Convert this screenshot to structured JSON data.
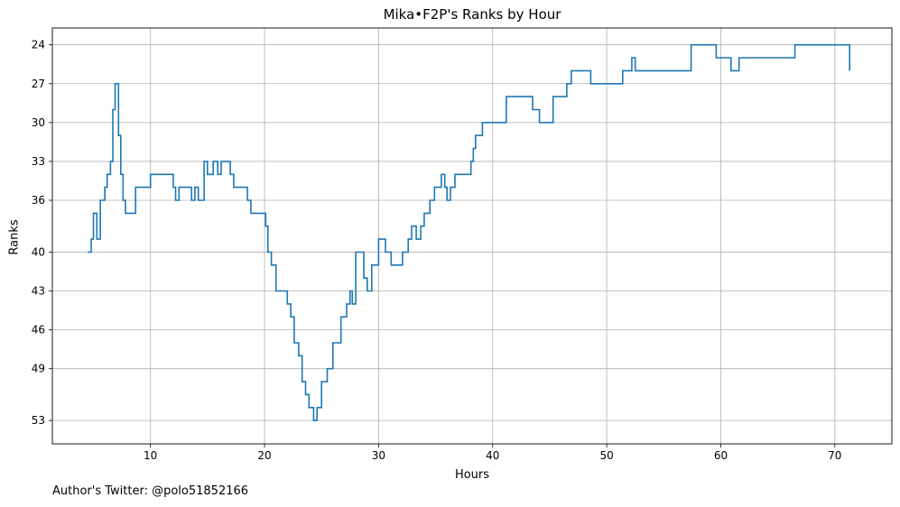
{
  "chart_data": {
    "type": "line",
    "step": true,
    "title": "Mika•F2P's Ranks by Hour",
    "xlabel": "Hours",
    "ylabel": "Ranks",
    "footer": "Author's Twitter: @polo51852166",
    "xlim": [
      1.4,
      75
    ],
    "ylim": [
      54.8,
      22.7
    ],
    "y_inverted": true,
    "grid": true,
    "line_color": "#1f77b4",
    "xticks": [
      10,
      20,
      30,
      40,
      50,
      60,
      70
    ],
    "yticks": [
      24,
      27,
      30,
      33,
      36,
      40,
      43,
      46,
      49,
      53
    ],
    "x": [
      4.5,
      4.8,
      5.0,
      5.3,
      5.6,
      6.0,
      6.2,
      6.5,
      6.7,
      6.9,
      7.2,
      7.4,
      7.6,
      7.8,
      8.0,
      8.7,
      9.0,
      10.0,
      11.0,
      12.0,
      12.2,
      12.5,
      13.2,
      13.6,
      13.9,
      14.2,
      14.7,
      15.0,
      15.5,
      15.9,
      16.2,
      17.0,
      17.3,
      18.1,
      18.5,
      18.8,
      19.0,
      20.1,
      20.3,
      20.6,
      21.0,
      21.5,
      22.0,
      22.3,
      22.6,
      23.0,
      23.3,
      23.6,
      23.9,
      24.3,
      24.6,
      25.0,
      25.5,
      26.0,
      26.7,
      26.9,
      27.2,
      27.5,
      27.7,
      28.0,
      28.7,
      29.0,
      29.4,
      30.0,
      30.6,
      31.1,
      32.1,
      32.6,
      32.9,
      33.3,
      33.7,
      34.0,
      34.5,
      34.9,
      35.5,
      35.8,
      36.0,
      36.3,
      36.7,
      38.1,
      38.3,
      38.5,
      39.1,
      41.2,
      43.5,
      44.1,
      45.3,
      46.5,
      46.9,
      48.6,
      51.4,
      52.2,
      52.5,
      57.4,
      59.6,
      60.9,
      61.6,
      65.1,
      66.5,
      67.9,
      71.3
    ],
    "y": [
      40,
      39,
      37,
      39,
      36,
      35,
      34,
      33,
      29,
      27,
      31,
      34,
      36,
      37,
      37,
      35,
      35,
      34,
      34,
      35,
      36,
      35,
      35,
      36,
      35,
      36,
      33,
      34,
      33,
      34,
      33,
      34,
      35,
      35,
      36,
      37,
      37,
      38,
      40,
      41,
      43,
      43,
      44,
      45,
      47,
      48,
      50,
      51,
      52,
      53,
      52,
      50,
      49,
      47,
      45,
      45,
      44,
      43,
      44,
      40,
      42,
      43,
      41,
      39,
      40,
      41,
      40,
      39,
      38,
      39,
      38,
      37,
      36,
      35,
      34,
      35,
      36,
      35,
      34,
      33,
      32,
      31,
      30,
      28,
      29,
      30,
      28,
      27,
      26,
      27,
      26,
      25,
      26,
      24,
      25,
      26,
      25,
      25,
      24,
      24,
      26
    ]
  }
}
